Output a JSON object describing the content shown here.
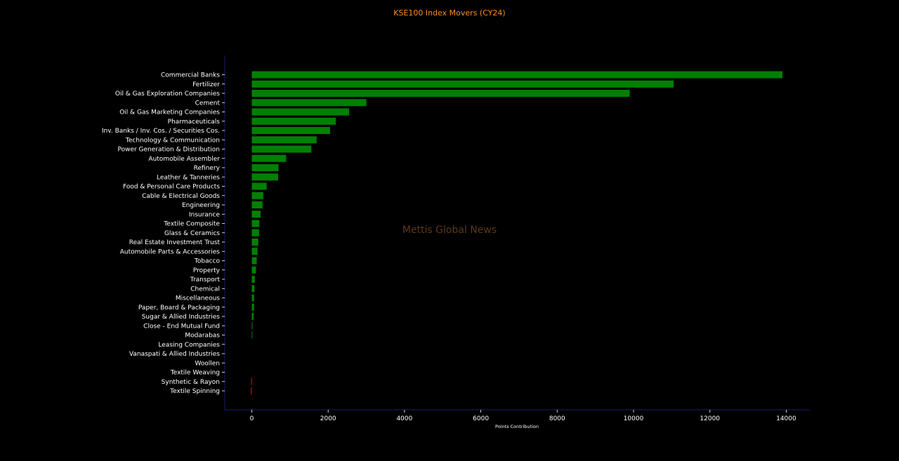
{
  "chart_data": {
    "type": "bar",
    "orientation": "horizontal",
    "title": "KSE100 Index Movers (CY24)",
    "xlabel": "Points Contribution",
    "ylabel": "",
    "watermark": "Mettis Global News",
    "xlim": [
      -700,
      14600
    ],
    "xticks": [
      0,
      2000,
      4000,
      6000,
      8000,
      10000,
      12000,
      14000
    ],
    "grid": false,
    "legend": "none",
    "categories": [
      "Commercial Banks",
      "Fertilizer",
      "Oil & Gas Exploration Companies",
      "Cement",
      "Oil & Gas Marketing Companies",
      "Pharmaceuticals",
      "Inv. Banks / Inv. Cos. / Securities Cos.",
      "Technology & Communication",
      "Power Generation & Distribution",
      "Automobile Assembler",
      "Refinery",
      "Leather & Tanneries",
      "Food & Personal Care Products",
      "Cable & Electrical Goods",
      "Engineering",
      "Insurance",
      "Textile Composite",
      "Glass & Ceramics",
      "Real Estate Investment Trust",
      "Automobile Parts & Accessories",
      "Tobacco",
      "Property",
      "Transport",
      "Chemical",
      "Miscellaneous",
      "Paper, Board & Packaging",
      "Sugar & Allied Industries",
      "Close - End Mutual Fund",
      "Modarabas",
      "Leasing Companies",
      "Vanaspati & Allied Industries",
      "Woollen",
      "Textile Weaving",
      "Synthetic & Rayon",
      "Textile Spinning"
    ],
    "values": [
      13900,
      11050,
      9900,
      3000,
      2550,
      2200,
      2050,
      1700,
      1560,
      900,
      700,
      690,
      390,
      300,
      280,
      230,
      200,
      190,
      170,
      150,
      130,
      110,
      80,
      70,
      60,
      60,
      50,
      20,
      15,
      0,
      0,
      0,
      0,
      -15,
      -20
    ],
    "colors": {
      "positive": "#008000",
      "negative": "#ff0000",
      "title": "#ff8c1a",
      "axis_line": "#1a1a6e",
      "watermark": "#5a3a1a",
      "background": "#000000"
    }
  }
}
